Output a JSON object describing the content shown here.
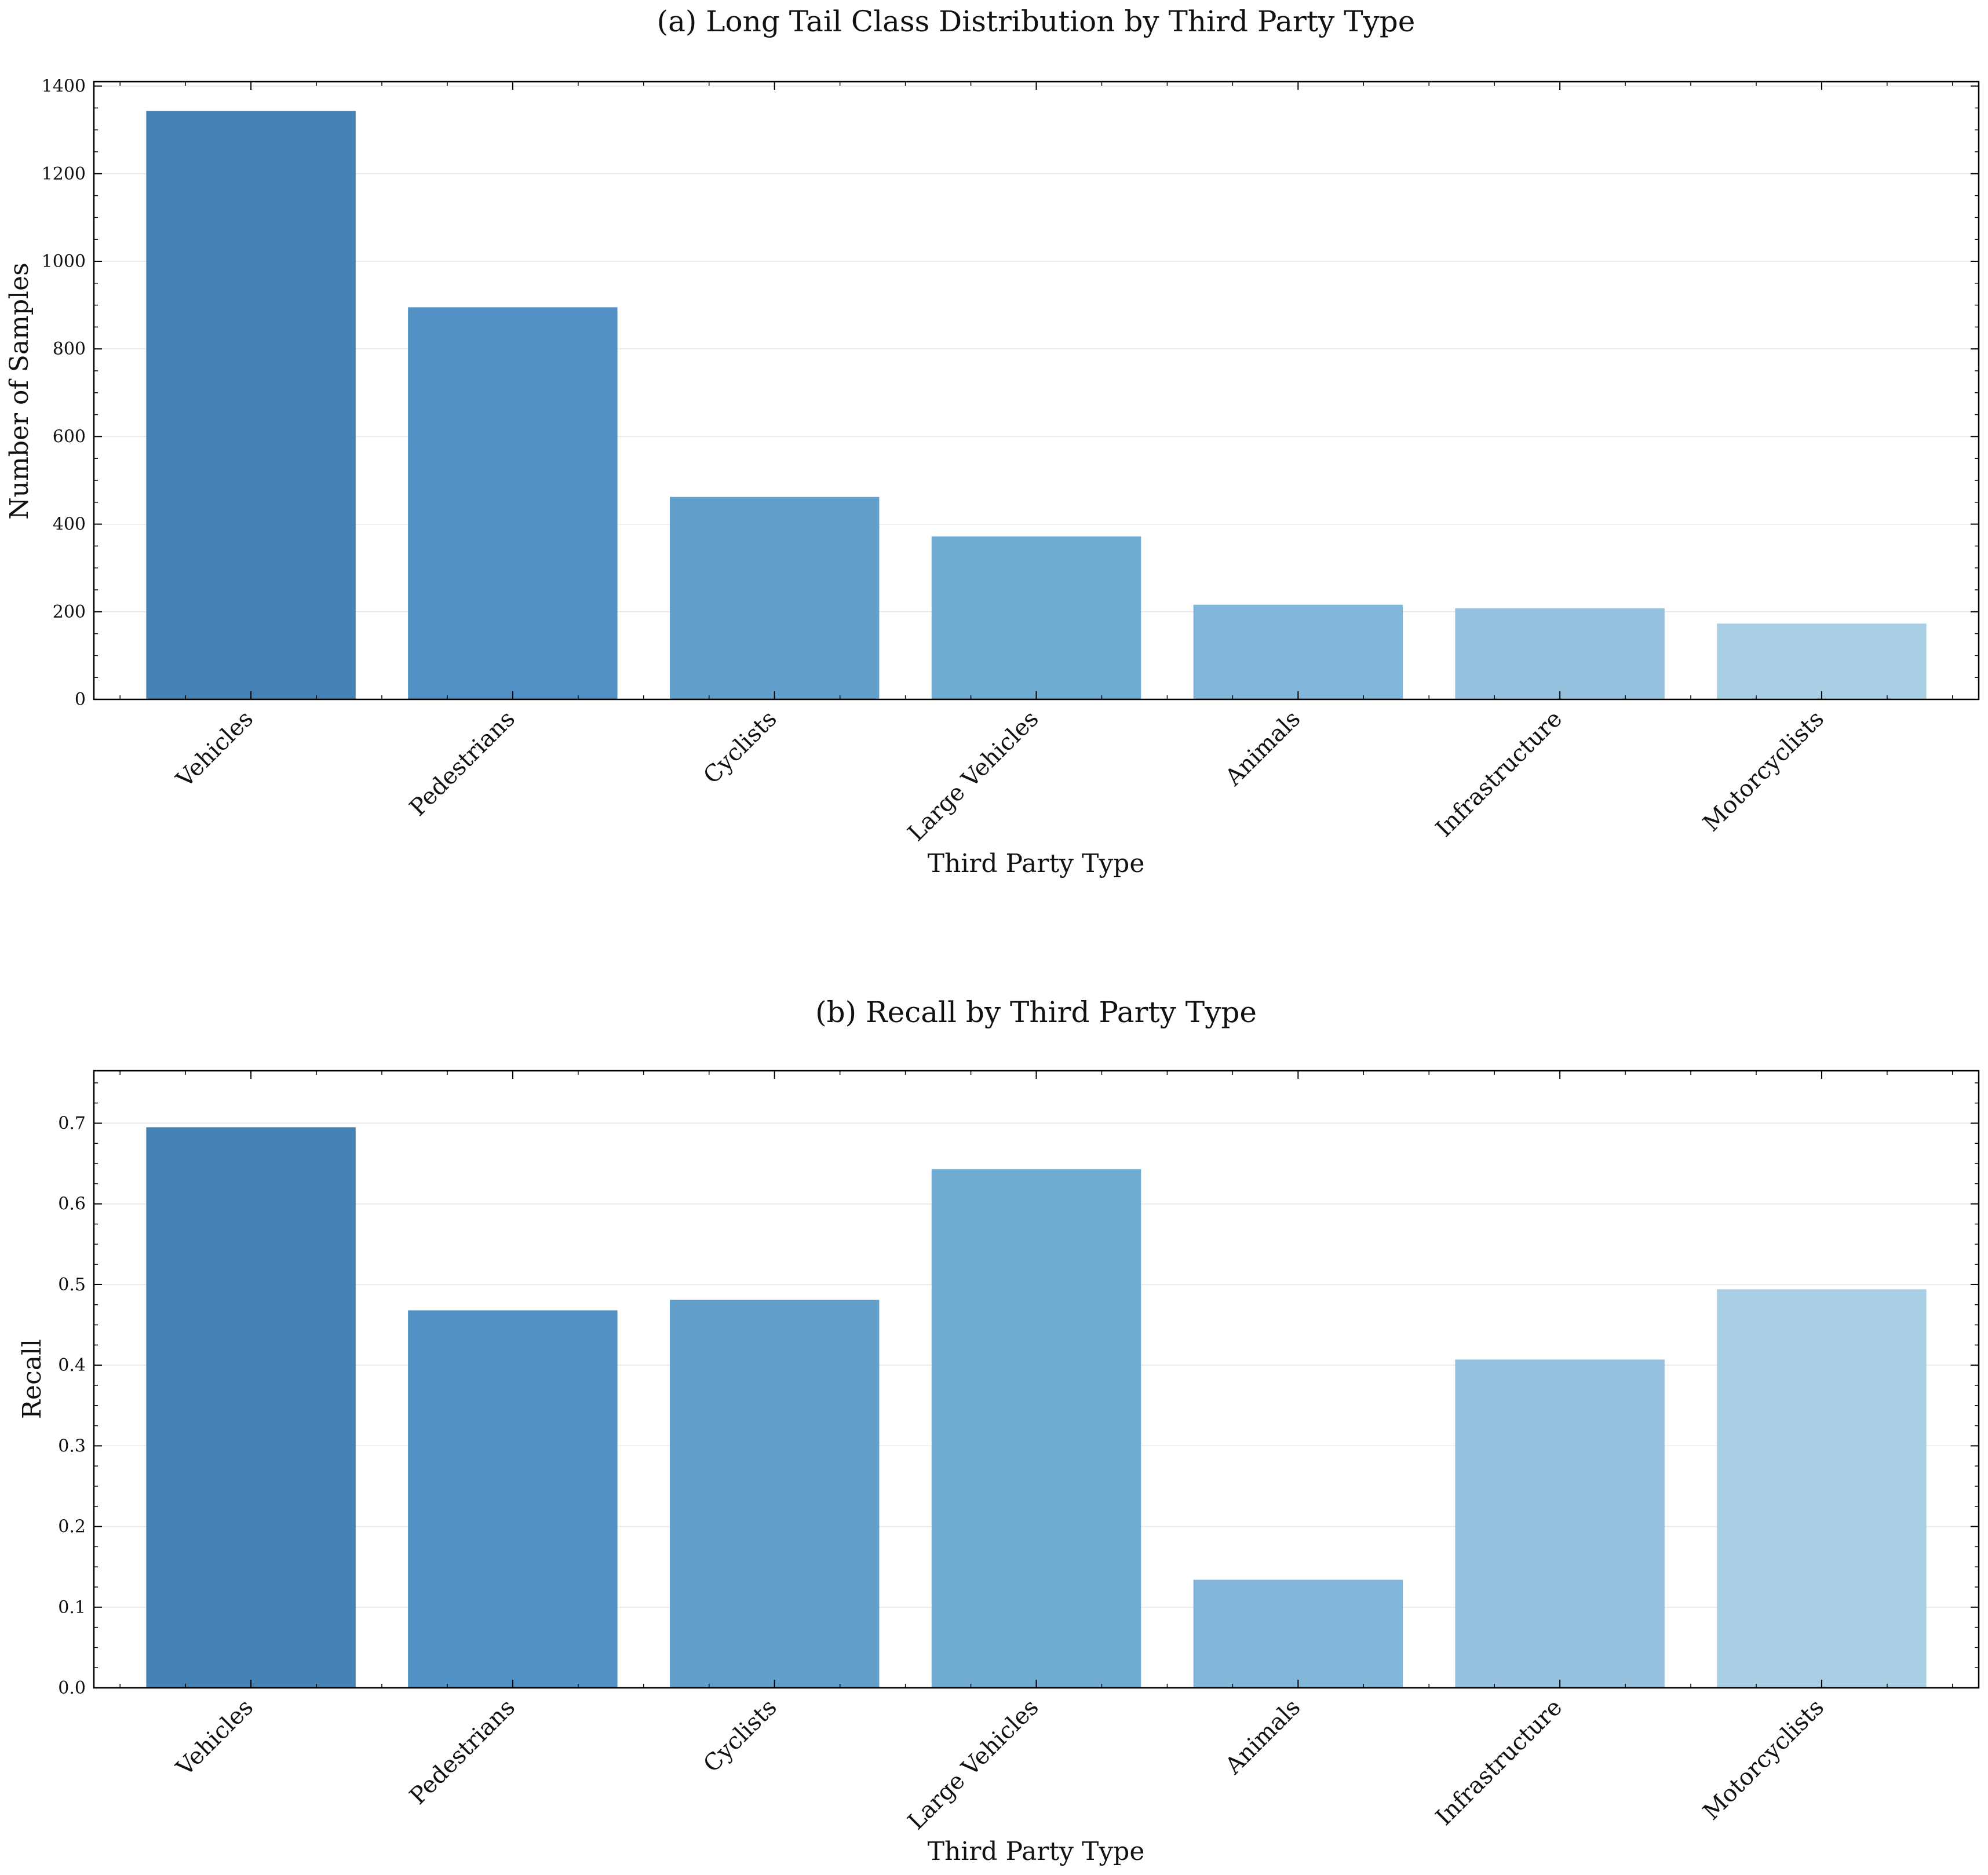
{
  "chart_data": [
    {
      "type": "bar",
      "title": "(a) Long Tail Class Distribution by Third Party Type",
      "xlabel": "Third Party Type",
      "ylabel": "Number of Samples",
      "categories": [
        "Vehicles",
        "Pedestrians",
        "Cyclists",
        "Large Vehicles",
        "Animals",
        "Infrastructure",
        "Motorcyclists"
      ],
      "values": [
        1343,
        895,
        462,
        372,
        216,
        208,
        173
      ],
      "ylim": [
        0,
        1410
      ],
      "yticks": [
        0,
        200,
        400,
        600,
        800,
        1000,
        1200,
        1400
      ],
      "ytick_labels": [
        "0",
        "200",
        "400",
        "600",
        "800",
        "1000",
        "1200",
        "1400"
      ],
      "grid": "horizontal",
      "colors": [
        "#4682b4",
        "#5191c5",
        "#62a0cb",
        "#70abd2",
        "#83b7da",
        "#96c2df",
        "#a9cfe4"
      ]
    },
    {
      "type": "bar",
      "title": "(b) Recall by Third Party Type",
      "xlabel": "Third Party Type",
      "ylabel": "Recall",
      "categories": [
        "Vehicles",
        "Pedestrians",
        "Cyclists",
        "Large Vehicles",
        "Animals",
        "Infrastructure",
        "Motorcyclists"
      ],
      "values": [
        0.695,
        0.468,
        0.481,
        0.643,
        0.134,
        0.407,
        0.494
      ],
      "ylim": [
        0,
        0.765
      ],
      "yticks": [
        0,
        0.1,
        0.2,
        0.3,
        0.4,
        0.5,
        0.6,
        0.7
      ],
      "ytick_labels": [
        "0.0",
        "0.1",
        "0.2",
        "0.3",
        "0.4",
        "0.5",
        "0.6",
        "0.7"
      ],
      "grid": "horizontal",
      "colors": [
        "#4682b4",
        "#5191c5",
        "#62a0cb",
        "#70abd2",
        "#83b7da",
        "#96c2df",
        "#a9cfe4"
      ]
    }
  ]
}
